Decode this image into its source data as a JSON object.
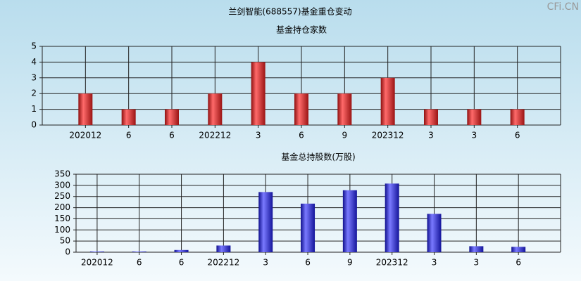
{
  "title": "兰剑智能(688557)基金重仓变动",
  "watermark": "CFi.CN",
  "chart_data": [
    {
      "type": "bar",
      "title": "基金持仓家数",
      "categories": [
        "202012",
        "6",
        "6",
        "202212",
        "3",
        "6",
        "9",
        "202312",
        "3",
        "3",
        "6"
      ],
      "values": [
        2,
        1,
        1,
        2,
        4,
        2,
        2,
        3,
        1,
        1,
        1
      ],
      "color": "#d42a2a",
      "ylim": [
        0,
        5
      ],
      "yticks": [
        0,
        1,
        2,
        3,
        4,
        5
      ],
      "grid": true
    },
    {
      "type": "bar",
      "title": "基金总持股数(万股)",
      "categories": [
        "202012",
        "6",
        "6",
        "202212",
        "3",
        "6",
        "9",
        "202312",
        "3",
        "3",
        "6"
      ],
      "values": [
        3,
        3,
        10,
        30,
        270,
        218,
        278,
        308,
        172,
        27,
        24
      ],
      "color": "#2a2ad4",
      "ylim": [
        0,
        350
      ],
      "yticks": [
        0,
        50,
        100,
        150,
        200,
        250,
        300,
        350
      ],
      "grid": true
    }
  ]
}
